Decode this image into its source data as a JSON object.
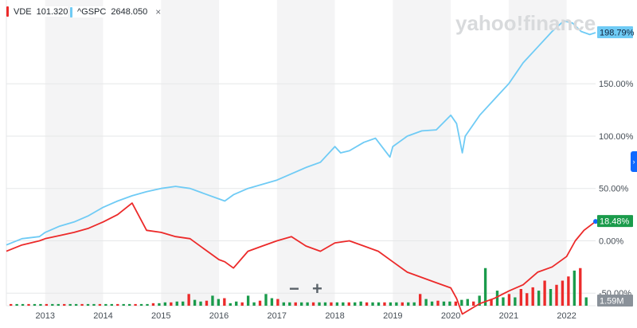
{
  "watermark": "yahoo!finance",
  "legend": [
    {
      "symbol": "VDE",
      "value": "101.320",
      "color": "#ec2a2a",
      "closable": false
    },
    {
      "symbol": "^GSPC",
      "value": "2648.050",
      "color": "#6fcbf5",
      "closable": true
    }
  ],
  "close_icon": "×",
  "controls": {
    "zoom_out": "−",
    "zoom_in": "+"
  },
  "side_tab_icon": "chevron-right-icon",
  "chart_data": {
    "type": "line",
    "x_ticks": [
      "2013",
      "2014",
      "2015",
      "2016",
      "2017",
      "2018",
      "2019",
      "2020",
      "2021",
      "2022"
    ],
    "y_ticks": [
      "150.00%",
      "100.00%",
      "50.00%",
      "0.00%",
      "-50.00%"
    ],
    "y_tick_values": [
      150,
      100,
      50,
      0,
      -50
    ],
    "ylim": [
      -62,
      230
    ],
    "xlim": [
      2012.33,
      2022.5
    ],
    "end_labels": {
      "gspc": "198.79%",
      "vde": "18.48%",
      "volume": "1.59M"
    },
    "series": [
      {
        "name": "^GSPC",
        "color": "#6fcbf5",
        "x": [
          2012.33,
          2012.6,
          2012.9,
          2013.0,
          2013.25,
          2013.5,
          2013.75,
          2014.0,
          2014.25,
          2014.5,
          2014.75,
          2015.0,
          2015.25,
          2015.5,
          2015.75,
          2016.0,
          2016.1,
          2016.25,
          2016.5,
          2016.75,
          2017.0,
          2017.25,
          2017.5,
          2017.75,
          2018.0,
          2018.1,
          2018.25,
          2018.5,
          2018.7,
          2018.95,
          2019.0,
          2019.25,
          2019.5,
          2019.75,
          2020.0,
          2020.1,
          2020.2,
          2020.25,
          2020.5,
          2020.75,
          2021.0,
          2021.25,
          2021.5,
          2021.75,
          2021.95,
          2022.1,
          2022.25,
          2022.4,
          2022.5
        ],
        "y": [
          -4,
          2,
          4,
          8,
          14,
          18,
          24,
          32,
          38,
          43,
          47,
          50,
          52,
          50,
          45,
          40,
          38,
          44,
          50,
          54,
          58,
          64,
          70,
          75,
          90,
          84,
          86,
          94,
          98,
          80,
          90,
          100,
          105,
          106,
          120,
          112,
          84,
          100,
          120,
          135,
          150,
          170,
          185,
          200,
          210,
          208,
          200,
          197,
          198.79
        ]
      },
      {
        "name": "VDE",
        "color": "#ec2a2a",
        "x": [
          2012.33,
          2012.6,
          2012.9,
          2013.0,
          2013.25,
          2013.5,
          2013.75,
          2014.0,
          2014.25,
          2014.5,
          2014.75,
          2015.0,
          2015.25,
          2015.5,
          2015.75,
          2016.0,
          2016.1,
          2016.25,
          2016.5,
          2016.75,
          2017.0,
          2017.25,
          2017.5,
          2017.75,
          2018.0,
          2018.25,
          2018.5,
          2018.75,
          2019.0,
          2019.25,
          2019.5,
          2019.75,
          2020.0,
          2020.1,
          2020.2,
          2020.35,
          2020.5,
          2020.75,
          2021.0,
          2021.25,
          2021.5,
          2021.75,
          2022.0,
          2022.15,
          2022.3,
          2022.5
        ],
        "y": [
          -10,
          -4,
          0,
          2,
          5,
          8,
          12,
          18,
          25,
          36,
          10,
          8,
          4,
          2,
          -8,
          -18,
          -20,
          -26,
          -10,
          -5,
          0,
          4,
          -5,
          -10,
          -2,
          0,
          -5,
          -10,
          -20,
          -30,
          -35,
          -40,
          -45,
          -55,
          -70,
          -65,
          -60,
          -55,
          -48,
          -42,
          -30,
          -25,
          -15,
          0,
          10,
          18.48
        ]
      }
    ],
    "volume": [
      2,
      2,
      2,
      2,
      2,
      2,
      2,
      2,
      2,
      2,
      2,
      2,
      2,
      2,
      2,
      2,
      2,
      2,
      2,
      2,
      2,
      2,
      2,
      2,
      3,
      3,
      4,
      4,
      5,
      5,
      14,
      7,
      5,
      6,
      12,
      8,
      9,
      3,
      5,
      4,
      12,
      4,
      6,
      14,
      9,
      8,
      4,
      4,
      4,
      4,
      4,
      4,
      4,
      4,
      4,
      4,
      4,
      4,
      4,
      5,
      4,
      4,
      4,
      4,
      4,
      4,
      4,
      4,
      4,
      14,
      8,
      5,
      6,
      5,
      5,
      5,
      7,
      8,
      5,
      12,
      45,
      8,
      18,
      10,
      14,
      10,
      20,
      15,
      22,
      18,
      30,
      20,
      25,
      30,
      35,
      42,
      45,
      10
    ]
  }
}
